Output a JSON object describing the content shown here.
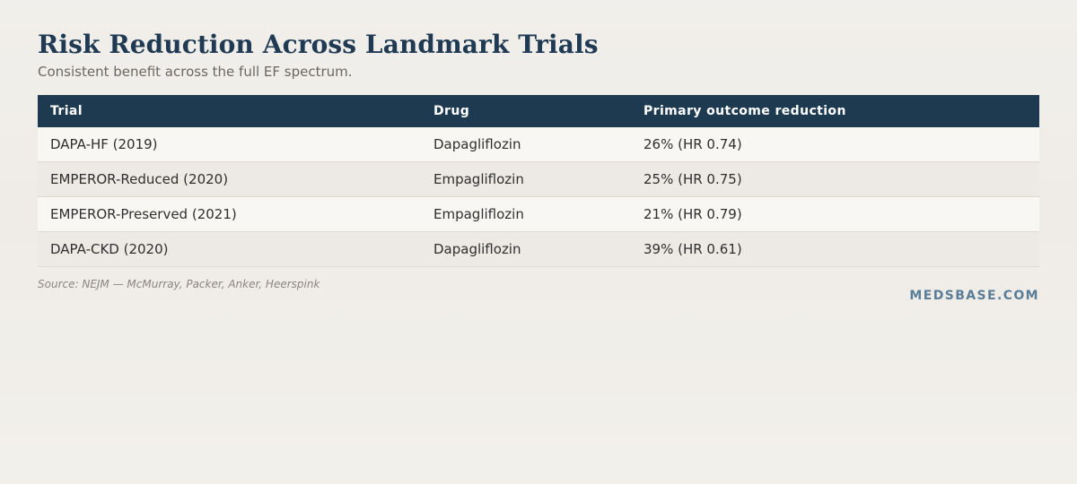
{
  "header": {
    "title": "Risk Reduction Across Landmark Trials",
    "subtitle": "Consistent benefit across the full EF spectrum."
  },
  "table": {
    "columns": [
      "Trial",
      "Drug",
      "Primary outcome reduction"
    ],
    "rows": [
      {
        "trial": "DAPA-HF (2019)",
        "drug": "Dapagliflozin",
        "outcome": "26% (HR 0.74)"
      },
      {
        "trial": "EMPEROR-Reduced (2020)",
        "drug": "Empagliflozin",
        "outcome": "25% (HR 0.75)"
      },
      {
        "trial": "EMPEROR-Preserved (2021)",
        "drug": "Empagliflozin",
        "outcome": "21% (HR 0.79)"
      },
      {
        "trial": "DAPA-CKD (2020)",
        "drug": "Dapagliflozin",
        "outcome": "39% (HR 0.61)"
      }
    ]
  },
  "footer": {
    "source": "Source: NEJM — McMurray, Packer, Anker, Heerspink",
    "brand": "MEDSBASE.COM"
  },
  "colors": {
    "header_bg": "#1e3a50",
    "title": "#1f3a52",
    "brand": "#5a7d98"
  }
}
